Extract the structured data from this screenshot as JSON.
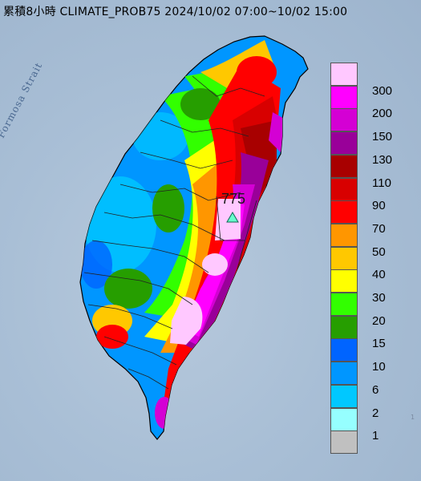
{
  "title": "累積8小時 CLIMATE_PROB75 2024/10/02 07:00~10/02 15:00",
  "strait_label": "Formosa Strait",
  "max_value_label": "775",
  "corner_text": "1",
  "legend": [
    {
      "label": "300",
      "color": "#ffc8ff"
    },
    {
      "label": "200",
      "color": "#ff00ff"
    },
    {
      "label": "150",
      "color": "#d400d4"
    },
    {
      "label": "130",
      "color": "#990099"
    },
    {
      "label": "110",
      "color": "#a80000"
    },
    {
      "label": "90",
      "color": "#d80000"
    },
    {
      "label": "70",
      "color": "#ff0000"
    },
    {
      "label": "50",
      "color": "#ff9600"
    },
    {
      "label": "40",
      "color": "#ffc800"
    },
    {
      "label": "30",
      "color": "#ffff00"
    },
    {
      "label": "20",
      "color": "#32ff00"
    },
    {
      "label": "15",
      "color": "#269e00"
    },
    {
      "label": "10",
      "color": "#0064ff"
    },
    {
      "label": "6",
      "color": "#0096ff"
    },
    {
      "label": "2",
      "color": "#00c8ff"
    },
    {
      "label": "1",
      "color": "#96ffff"
    },
    {
      "label": "",
      "color": "#c0c0c0"
    }
  ]
}
